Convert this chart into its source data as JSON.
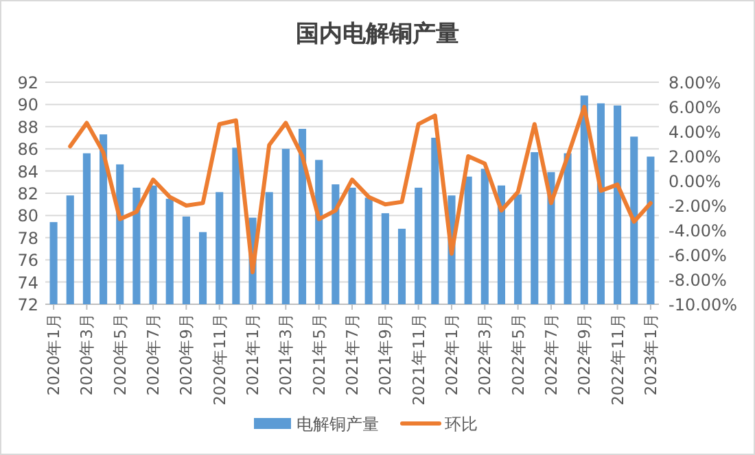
{
  "chart_data": {
    "type": "bar",
    "title": "国内电解铜产量",
    "categories": [
      "2020年1月",
      null,
      "2020年3月",
      null,
      "2020年5月",
      null,
      "2020年7月",
      null,
      "2020年9月",
      null,
      "2020年11月",
      null,
      "2021年1月",
      null,
      "2021年3月",
      null,
      "2021年5月",
      null,
      "2021年7月",
      null,
      "2021年9月",
      null,
      "2021年11月",
      null,
      "2022年1月",
      null,
      "2022年3月",
      null,
      "2022年5月",
      null,
      "2022年7月",
      null,
      "2022年9月",
      null,
      "2022年11月",
      null,
      "2023年1月"
    ],
    "series": [
      {
        "name": "电解铜产量",
        "color": "#5b9bd5",
        "values": [
          79.4,
          81.8,
          85.6,
          87.3,
          84.6,
          82.5,
          82.7,
          81.5,
          79.9,
          78.5,
          82.1,
          86.1,
          79.8,
          82.1,
          86.0,
          87.8,
          85.0,
          82.8,
          82.5,
          81.6,
          80.2,
          78.8,
          82.5,
          87.0,
          81.8,
          83.5,
          84.2,
          82.7,
          81.9,
          85.7,
          83.9,
          85.6,
          90.8,
          90.1,
          89.9,
          87.1,
          85.3
        ]
      },
      {
        "name": "环比",
        "type": "line",
        "axis": "y2",
        "color": "#ed7d31",
        "values": [
          null,
          2.8,
          4.7,
          2.3,
          -3.1,
          -2.5,
          0.1,
          -1.3,
          -2.0,
          -1.8,
          4.6,
          4.9,
          -7.4,
          2.9,
          4.7,
          2.0,
          -3.1,
          -2.4,
          0.1,
          -1.3,
          -1.9,
          -1.7,
          4.6,
          5.3,
          -5.9,
          2.0,
          1.4,
          -2.4,
          -0.9,
          4.6,
          -1.8,
          2.0,
          6.0,
          -0.8,
          -0.3,
          -3.3,
          -1.8
        ]
      }
    ],
    "ylim": [
      72,
      92
    ],
    "yticks": [
      72,
      74,
      76,
      78,
      80,
      82,
      84,
      86,
      88,
      90,
      92
    ],
    "y2lim": [
      -10,
      8
    ],
    "y2ticks": [
      {
        "value": -10,
        "label": "-10.00%"
      },
      {
        "value": -8,
        "label": "-8.00%"
      },
      {
        "value": -6,
        "label": "-6.00%"
      },
      {
        "value": -4,
        "label": "-4.00%"
      },
      {
        "value": -2,
        "label": "-2.00%"
      },
      {
        "value": 0,
        "label": "0.00%"
      },
      {
        "value": 2,
        "label": "2.00%"
      },
      {
        "value": 4,
        "label": "4.00%"
      },
      {
        "value": 6,
        "label": "6.00%"
      },
      {
        "value": 8,
        "label": "8.00%"
      }
    ],
    "grid": "y",
    "legend": "bottom"
  }
}
